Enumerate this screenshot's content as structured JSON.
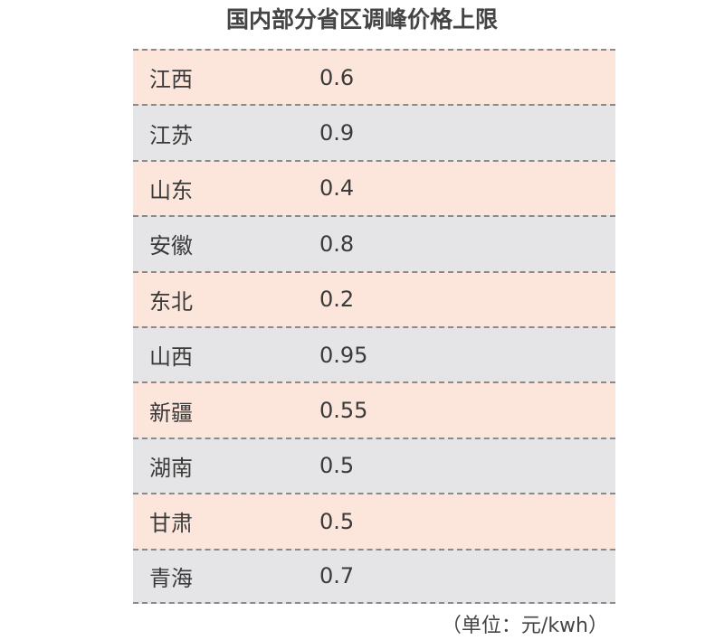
{
  "chart_data": {
    "type": "table",
    "title": "国内部分省区调峰价格上限",
    "rows": [
      {
        "region": "江西",
        "value": "0.6"
      },
      {
        "region": "江苏",
        "value": "0.9"
      },
      {
        "region": "山东",
        "value": "0.4"
      },
      {
        "region": "安徽",
        "value": "0.8"
      },
      {
        "region": "东北",
        "value": "0.2"
      },
      {
        "region": "山西",
        "value": "0.95"
      },
      {
        "region": "新疆",
        "value": "0.55"
      },
      {
        "region": "湖南",
        "value": "0.5"
      },
      {
        "region": "甘肃",
        "value": "0.5"
      },
      {
        "region": "青海",
        "value": "0.7"
      }
    ],
    "unit_note": "（单位：元/kwh）",
    "colors": {
      "row_odd": "#fce6db",
      "row_even": "#e5e5e7"
    }
  }
}
